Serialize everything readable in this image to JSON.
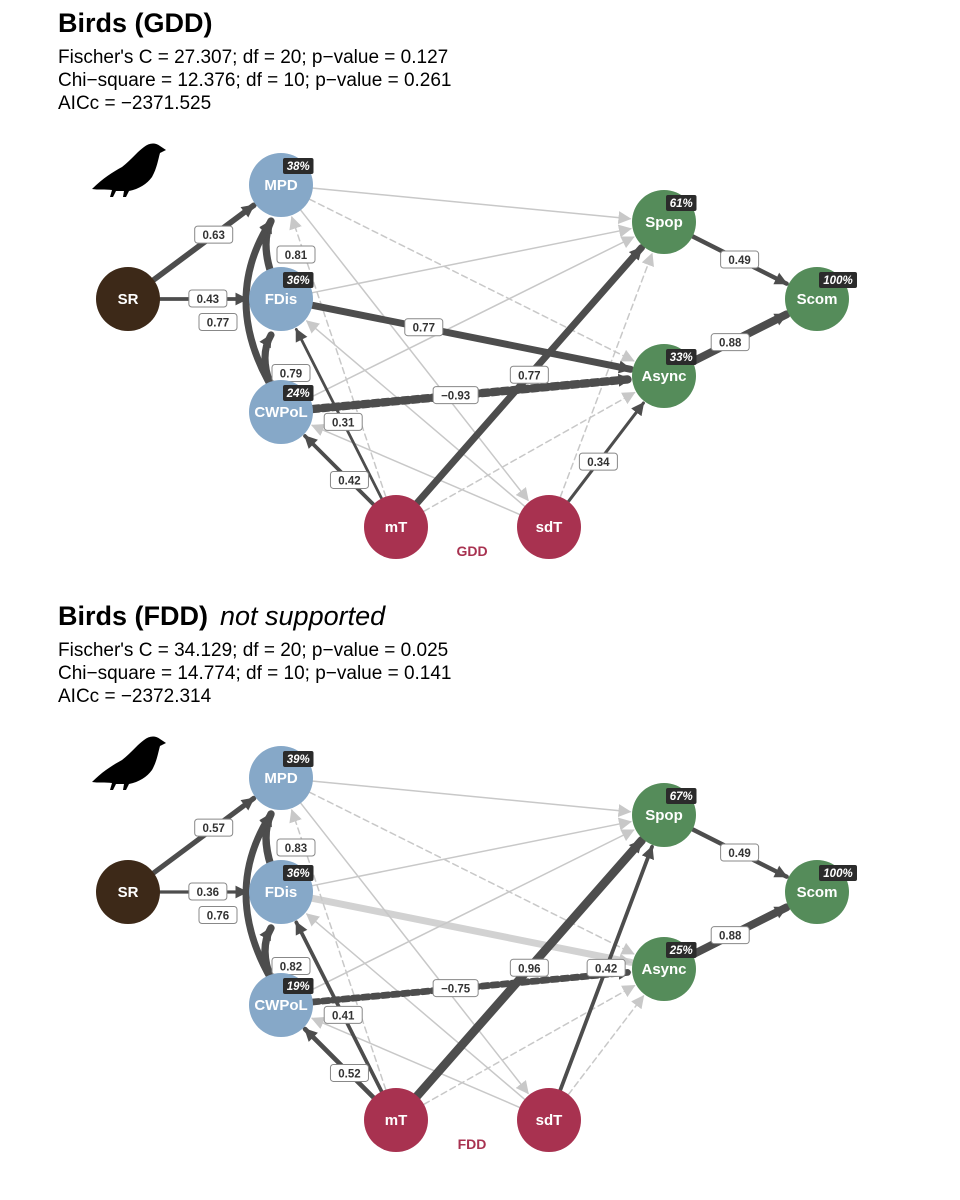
{
  "colors": {
    "biodiversity": "#86a8c8",
    "stability": "#558c5a",
    "climate": "#a83250",
    "richness": "#3d2918",
    "strong": "#4d4d4d",
    "weak": "#c8c8c8",
    "label_bg": "#2b2b2b"
  },
  "icons": {
    "bird": "bird-silhouette-icon"
  },
  "panels": [
    {
      "title": "Birds (GDD)",
      "note": "",
      "stats": [
        "Fischer's C = 27.307; df = 20; p−value = 0.127",
        "Chi−square = 12.376; df = 10; p−value = 0.261",
        "AICc = −2371.525"
      ],
      "driver_label": "GDD",
      "nodes": [
        {
          "id": "SR",
          "label": "SR",
          "group": "richness",
          "r2": ""
        },
        {
          "id": "MPD",
          "label": "MPD",
          "group": "biodiversity",
          "r2": "38%"
        },
        {
          "id": "FDis",
          "label": "FDis",
          "group": "biodiversity",
          "r2": "36%"
        },
        {
          "id": "CWPoL",
          "label": "CWPoL",
          "group": "biodiversity",
          "r2": "24%"
        },
        {
          "id": "mT",
          "label": "mT",
          "group": "climate",
          "r2": ""
        },
        {
          "id": "sdT",
          "label": "sdT",
          "group": "climate",
          "r2": ""
        },
        {
          "id": "Spop",
          "label": "Spop",
          "group": "stability",
          "r2": "61%"
        },
        {
          "id": "Async",
          "label": "Async",
          "group": "stability",
          "r2": "33%"
        },
        {
          "id": "Scom",
          "label": "Scom",
          "group": "stability",
          "r2": "100%"
        }
      ],
      "edges": [
        {
          "from": "SR",
          "to": "MPD",
          "coef": 0.63,
          "label": "0.63",
          "sig": true
        },
        {
          "from": "SR",
          "to": "FDis",
          "coef": 0.43,
          "label": "0.43",
          "sig": true
        },
        {
          "from": "FDis",
          "to": "MPD",
          "coef": 0.81,
          "label": "0.81",
          "sig": true
        },
        {
          "from": "CWPoL",
          "to": "MPD",
          "coef": 0.77,
          "label": "0.77",
          "sig": true
        },
        {
          "from": "CWPoL",
          "to": "FDis",
          "coef": 0.79,
          "label": "0.79",
          "sig": true
        },
        {
          "from": "mT",
          "to": "CWPoL",
          "coef": 0.42,
          "label": "0.42",
          "sig": true
        },
        {
          "from": "mT",
          "to": "FDis",
          "coef": 0.31,
          "label": "0.31",
          "sig": true
        },
        {
          "from": "mT",
          "to": "Spop",
          "coef": 0.77,
          "label": "0.77",
          "sig": true
        },
        {
          "from": "FDis",
          "to": "Async",
          "coef": 0.77,
          "label": "0.77",
          "sig": true
        },
        {
          "from": "CWPoL",
          "to": "Async",
          "coef": -0.93,
          "label": "−0.93",
          "sig": true
        },
        {
          "from": "sdT",
          "to": "Async",
          "coef": 0.34,
          "label": "0.34",
          "sig": true
        },
        {
          "from": "Spop",
          "to": "Scom",
          "coef": 0.49,
          "label": "0.49",
          "sig": true
        },
        {
          "from": "Async",
          "to": "Scom",
          "coef": 0.88,
          "label": "0.88",
          "sig": true
        },
        {
          "from": "MPD",
          "to": "Spop",
          "coef": 0.2,
          "label": "",
          "sig": false
        },
        {
          "from": "FDis",
          "to": "Spop",
          "coef": 0.1,
          "label": "",
          "sig": false
        },
        {
          "from": "CWPoL",
          "to": "Spop",
          "coef": 0.1,
          "label": "",
          "sig": false
        },
        {
          "from": "MPD",
          "to": "Async",
          "coef": -0.1,
          "label": "",
          "sig": false
        },
        {
          "from": "MPD",
          "to": "sdT",
          "coef": 0.1,
          "label": "",
          "sig": false
        },
        {
          "from": "sdT",
          "to": "CWPoL",
          "coef": 0.1,
          "label": "",
          "sig": false
        },
        {
          "from": "sdT",
          "to": "FDis",
          "coef": 0.1,
          "label": "",
          "sig": false
        },
        {
          "from": "sdT",
          "to": "Spop",
          "coef": -0.1,
          "label": "",
          "sig": false
        },
        {
          "from": "mT",
          "to": "MPD",
          "coef": -0.1,
          "label": "",
          "sig": false
        },
        {
          "from": "mT",
          "to": "Async",
          "coef": -0.1,
          "label": "",
          "sig": false
        }
      ]
    },
    {
      "title": "Birds (FDD)",
      "note": "not supported",
      "stats": [
        "Fischer's C = 34.129; df = 20; p−value = 0.025",
        "Chi−square = 14.774; df = 10; p−value = 0.141",
        "AICc = −2372.314"
      ],
      "driver_label": "FDD",
      "nodes": [
        {
          "id": "SR",
          "label": "SR",
          "group": "richness",
          "r2": ""
        },
        {
          "id": "MPD",
          "label": "MPD",
          "group": "biodiversity",
          "r2": "39%"
        },
        {
          "id": "FDis",
          "label": "FDis",
          "group": "biodiversity",
          "r2": "36%"
        },
        {
          "id": "CWPoL",
          "label": "CWPoL",
          "group": "biodiversity",
          "r2": "19%"
        },
        {
          "id": "mT",
          "label": "mT",
          "group": "climate",
          "r2": ""
        },
        {
          "id": "sdT",
          "label": "sdT",
          "group": "climate",
          "r2": ""
        },
        {
          "id": "Spop",
          "label": "Spop",
          "group": "stability",
          "r2": "67%"
        },
        {
          "id": "Async",
          "label": "Async",
          "group": "stability",
          "r2": "25%"
        },
        {
          "id": "Scom",
          "label": "Scom",
          "group": "stability",
          "r2": "100%"
        }
      ],
      "edges": [
        {
          "from": "SR",
          "to": "MPD",
          "coef": 0.57,
          "label": "0.57",
          "sig": true
        },
        {
          "from": "SR",
          "to": "FDis",
          "coef": 0.36,
          "label": "0.36",
          "sig": true
        },
        {
          "from": "FDis",
          "to": "MPD",
          "coef": 0.83,
          "label": "0.83",
          "sig": true
        },
        {
          "from": "CWPoL",
          "to": "MPD",
          "coef": 0.76,
          "label": "0.76",
          "sig": true
        },
        {
          "from": "CWPoL",
          "to": "FDis",
          "coef": 0.82,
          "label": "0.82",
          "sig": true
        },
        {
          "from": "mT",
          "to": "CWPoL",
          "coef": 0.52,
          "label": "0.52",
          "sig": true
        },
        {
          "from": "mT",
          "to": "FDis",
          "coef": 0.41,
          "label": "0.41",
          "sig": true
        },
        {
          "from": "mT",
          "to": "Spop",
          "coef": 0.96,
          "label": "0.96",
          "sig": true
        },
        {
          "from": "sdT",
          "to": "Spop",
          "coef": 0.42,
          "label": "0.42",
          "sig": true
        },
        {
          "from": "CWPoL",
          "to": "Async",
          "coef": -0.75,
          "label": "−0.75",
          "sig": true
        },
        {
          "from": "Spop",
          "to": "Scom",
          "coef": 0.49,
          "label": "0.49",
          "sig": true
        },
        {
          "from": "Async",
          "to": "Scom",
          "coef": 0.88,
          "label": "0.88",
          "sig": true
        },
        {
          "from": "FDis",
          "to": "Async",
          "coef": 0.77,
          "label": "",
          "sig": false
        },
        {
          "from": "MPD",
          "to": "Spop",
          "coef": 0.2,
          "label": "",
          "sig": false
        },
        {
          "from": "FDis",
          "to": "Spop",
          "coef": 0.1,
          "label": "",
          "sig": false
        },
        {
          "from": "CWPoL",
          "to": "Spop",
          "coef": 0.1,
          "label": "",
          "sig": false
        },
        {
          "from": "MPD",
          "to": "Async",
          "coef": -0.1,
          "label": "",
          "sig": false
        },
        {
          "from": "MPD",
          "to": "sdT",
          "coef": 0.1,
          "label": "",
          "sig": false
        },
        {
          "from": "sdT",
          "to": "CWPoL",
          "coef": 0.1,
          "label": "",
          "sig": false
        },
        {
          "from": "sdT",
          "to": "FDis",
          "coef": 0.1,
          "label": "",
          "sig": false
        },
        {
          "from": "sdT",
          "to": "Async",
          "coef": -0.1,
          "label": "",
          "sig": false
        },
        {
          "from": "mT",
          "to": "MPD",
          "coef": -0.1,
          "label": "",
          "sig": false
        },
        {
          "from": "mT",
          "to": "Async",
          "coef": -0.1,
          "label": "",
          "sig": false
        }
      ]
    }
  ]
}
